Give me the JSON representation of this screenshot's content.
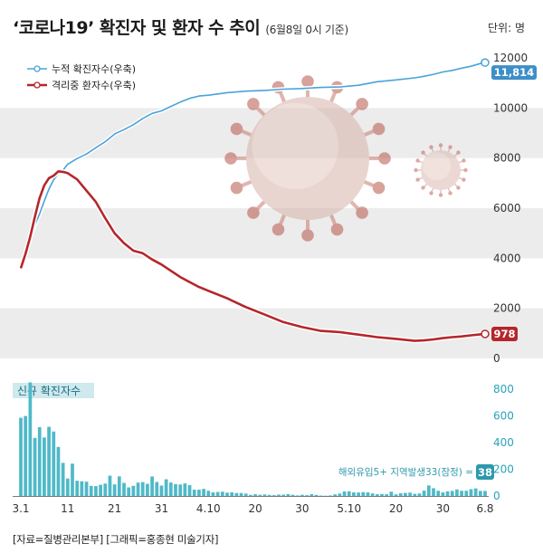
{
  "header": {
    "title": "‘코로나19’ 확진자 및 환자 수 추이",
    "subtitle": "(6월8일 0시 기준)",
    "unit": "단위: 명"
  },
  "credit": "[자료=질병관리본부] [그래픽=홍종현 미술기자]",
  "colors": {
    "cumulative": "#4aa3d8",
    "cumulative_label_bg": "#3d8fc8",
    "isolated": "#b5262b",
    "daily_bar": "#4fb9c8",
    "daily_label_bg": "#2d9aab",
    "band": "#ececec"
  },
  "chart_data": [
    {
      "type": "line",
      "title": "누적 확진자수 / 격리중 환자수",
      "ylim": [
        0,
        12000
      ],
      "yticks": [
        0,
        2000,
        4000,
        6000,
        8000,
        10000,
        12000
      ],
      "x_tick_labels": [
        "3.1",
        "11",
        "21",
        "31",
        "4.10",
        "20",
        "30",
        "5.10",
        "20",
        "30",
        "6.8"
      ],
      "x_tick_days": [
        0,
        10,
        20,
        30,
        40,
        50,
        60,
        70,
        80,
        90,
        99
      ],
      "series": [
        {
          "name": "누적 확진자수(우축)",
          "day": [
            0,
            1,
            2,
            3,
            4,
            5,
            6,
            7,
            8,
            9,
            10,
            12,
            14,
            16,
            18,
            20,
            22,
            24,
            26,
            28,
            30,
            32,
            34,
            36,
            38,
            40,
            44,
            48,
            52,
            56,
            60,
            64,
            68,
            72,
            76,
            80,
            84,
            86,
            88,
            90,
            92,
            94,
            96,
            98,
            99
          ],
          "values": [
            3736,
            4212,
            4812,
            5328,
            5766,
            6284,
            6767,
            7134,
            7382,
            7513,
            7755,
            7979,
            8162,
            8413,
            8652,
            8961,
            9137,
            9332,
            9583,
            9786,
            9887,
            10062,
            10237,
            10384,
            10480,
            10512,
            10613,
            10674,
            10702,
            10752,
            10780,
            10822,
            10840,
            10909,
            11050,
            11122,
            11206,
            11265,
            11344,
            11441,
            11503,
            11590,
            11668,
            11776,
            11814
          ],
          "end_label": "11,814"
        },
        {
          "name": "격리중 환자수(우축)",
          "day": [
            0,
            1,
            2,
            3,
            4,
            5,
            6,
            7,
            8,
            9,
            10,
            12,
            14,
            16,
            18,
            20,
            22,
            24,
            26,
            28,
            30,
            32,
            34,
            36,
            38,
            40,
            44,
            48,
            52,
            56,
            60,
            64,
            68,
            72,
            76,
            80,
            84,
            86,
            88,
            90,
            92,
            94,
            96,
            98,
            99
          ],
          "values": [
            3600,
            4180,
            4860,
            5650,
            6400,
            6910,
            7200,
            7300,
            7470,
            7450,
            7400,
            7150,
            6700,
            6250,
            5600,
            5000,
            4600,
            4300,
            4200,
            3950,
            3750,
            3500,
            3250,
            3050,
            2850,
            2700,
            2400,
            2050,
            1750,
            1450,
            1250,
            1100,
            1050,
            950,
            850,
            780,
            700,
            720,
            760,
            810,
            850,
            880,
            920,
            960,
            978
          ],
          "end_label": "978"
        }
      ]
    },
    {
      "type": "bar",
      "title": "신규 확진자수",
      "ylim": [
        0,
        800
      ],
      "yticks": [
        0,
        200,
        400,
        600,
        800
      ],
      "day": [
        0,
        1,
        2,
        3,
        4,
        5,
        6,
        7,
        8,
        9,
        10,
        11,
        12,
        13,
        14,
        15,
        16,
        17,
        18,
        19,
        20,
        21,
        22,
        23,
        24,
        25,
        26,
        27,
        28,
        29,
        30,
        31,
        32,
        33,
        34,
        35,
        36,
        37,
        38,
        39,
        40,
        41,
        42,
        43,
        44,
        45,
        46,
        47,
        48,
        49,
        50,
        51,
        52,
        53,
        54,
        55,
        56,
        57,
        58,
        59,
        60,
        61,
        62,
        63,
        64,
        65,
        66,
        67,
        68,
        69,
        70,
        71,
        72,
        73,
        74,
        75,
        76,
        77,
        78,
        79,
        80,
        81,
        82,
        83,
        84,
        85,
        86,
        87,
        88,
        89,
        90,
        91,
        92,
        93,
        94,
        95,
        96,
        97,
        98,
        99
      ],
      "values": [
        586,
        599,
        851,
        435,
        516,
        438,
        518,
        483,
        367,
        248,
        131,
        242,
        114,
        110,
        107,
        76,
        74,
        84,
        93,
        152,
        87,
        147,
        98,
        64,
        76,
        100,
        104,
        91,
        146,
        105,
        78,
        125,
        101,
        89,
        86,
        94,
        81,
        47,
        47,
        53,
        39,
        27,
        30,
        32,
        25,
        27,
        22,
        22,
        18,
        8,
        13,
        9,
        11,
        8,
        6,
        10,
        10,
        14,
        9,
        4,
        9,
        6,
        13,
        8,
        3,
        2,
        4,
        12,
        18,
        34,
        35,
        27,
        26,
        29,
        27,
        19,
        13,
        15,
        13,
        32,
        12,
        20,
        23,
        25,
        16,
        19,
        40,
        79,
        58,
        39,
        27,
        35,
        38,
        49,
        39,
        39,
        51,
        57,
        38,
        38
      ],
      "last_label": "38",
      "annotation": "해외유입5+ 지역발생33(잠정) ="
    }
  ],
  "legend": [
    {
      "label": "누적 확진자수(우축)"
    },
    {
      "label": "격리중 환자수(우축)"
    }
  ]
}
